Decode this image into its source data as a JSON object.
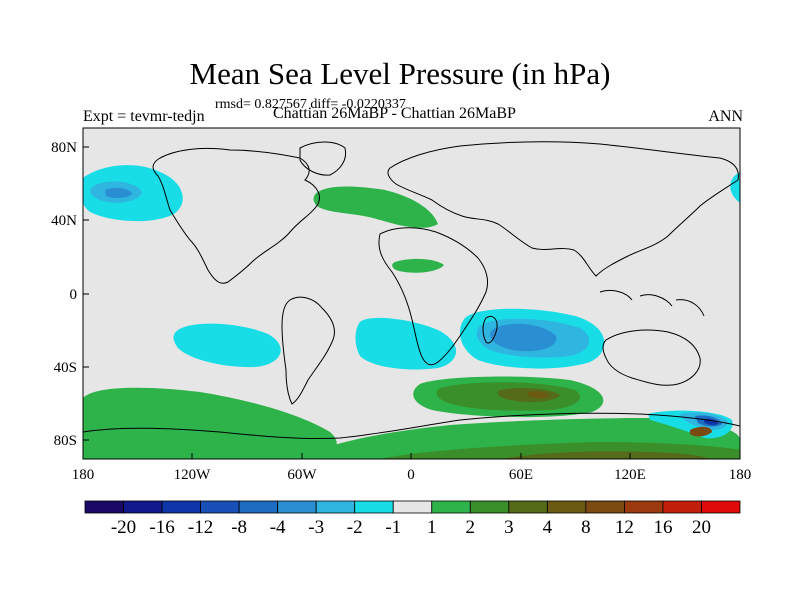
{
  "title": "Mean Sea Level Pressure (in hPa)",
  "stats_line": "rmsd= 0.827567 diff= -0.0220337",
  "experiment": "Expt = tevmr-tedjn",
  "comparison": "Chattian  26MaBP - Chattian  26MaBP",
  "season": "ANN",
  "map": {
    "lon_ticks": [
      "180",
      "120W",
      "60W",
      "0",
      "60E",
      "120E",
      "180"
    ],
    "lat_ticks": [
      "80N",
      "40N",
      "0",
      "40S",
      "80S"
    ]
  },
  "colorbar": {
    "colors": [
      "#1a0a66",
      "#12198a",
      "#1035a8",
      "#1850b8",
      "#1e6cc2",
      "#2a8fd2",
      "#2fb6e0",
      "#19dde6",
      "#e6e6e6",
      "#2eb34a",
      "#3a8f2a",
      "#556b1a",
      "#6b5a12",
      "#7a4a10",
      "#9a3a0e",
      "#c0200a",
      "#e00a0a"
    ],
    "labels": [
      "-20",
      "-16",
      "-12",
      "-8",
      "-4",
      "-3",
      "-2",
      "-1",
      "1",
      "2",
      "3",
      "4",
      "8",
      "12",
      "16",
      "20"
    ]
  },
  "legend_colors": {
    "land_bg": "#e6e6e6",
    "negative_light": "#19dde6",
    "negative_mid": "#2fb6e0",
    "negative_dark": "#2a8fd2",
    "positive_1": "#2eb34a",
    "positive_2": "#3a8f2a",
    "positive_3": "#556b1a",
    "positive_4": "#6b5a12"
  }
}
